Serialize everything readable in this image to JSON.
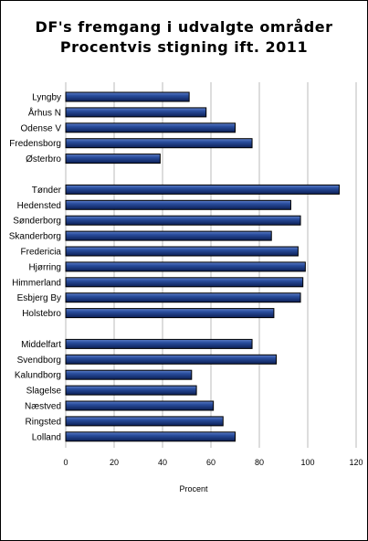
{
  "chart_data": {
    "type": "bar",
    "orientation": "horizontal",
    "title": "DF's fremgang i udvalgte områder",
    "subtitle": "Procentvis stigning ift. 2011",
    "xlabel": "Procent",
    "xlim": [
      0,
      120
    ],
    "xticks": [
      0,
      20,
      40,
      60,
      80,
      100,
      120
    ],
    "grid": "vertical",
    "bar_color": "#1F3F8F",
    "groups": [
      {
        "categories": [
          "Lyngby",
          "Århus N",
          "Odense V",
          "Fredensborg",
          "Østerbro"
        ],
        "values": [
          51,
          58,
          70,
          77,
          39
        ]
      },
      {
        "categories": [
          "Tønder",
          "Hedensted",
          "Sønderborg",
          "Skanderborg",
          "Fredericia",
          "Hjørring",
          "Himmerland",
          "Esbjerg By",
          "Holstebro"
        ],
        "values": [
          113,
          93,
          97,
          85,
          96,
          99,
          98,
          97,
          86
        ]
      },
      {
        "categories": [
          "Middelfart",
          "Svendborg",
          "Kalundborg",
          "Slagelse",
          "Næstved",
          "Ringsted",
          "Lolland"
        ],
        "values": [
          77,
          87,
          52,
          54,
          61,
          65,
          70
        ]
      }
    ]
  }
}
